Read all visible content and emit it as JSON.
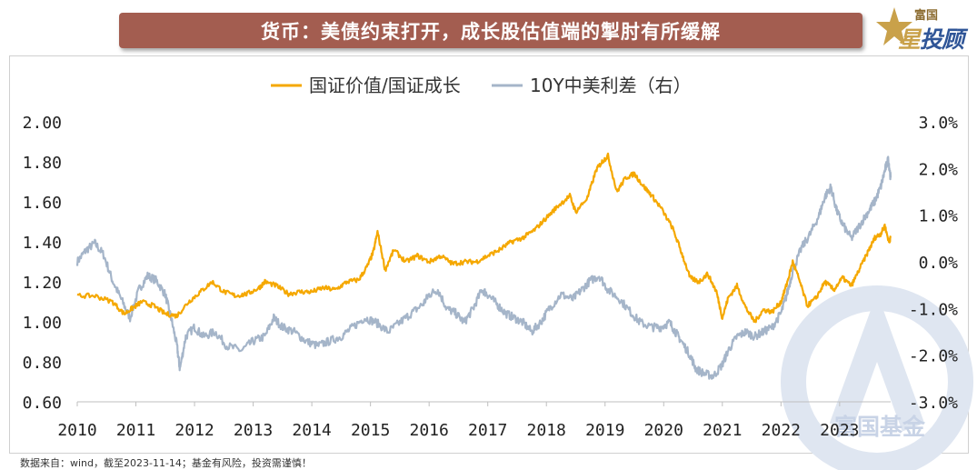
{
  "header": {
    "title": "货币：美债约束打开，成长股估值端的掣肘有所缓解"
  },
  "logo": {
    "top_text": "富国",
    "main_text_a": "星",
    "main_text_b": "投顾",
    "colors": {
      "gold": "#c9a14a",
      "blue": "#2f5597"
    }
  },
  "watermark": {
    "text": "富国基金",
    "color": "#c8d3e6"
  },
  "source": "数据来自：wind，截至2023-11-14；基金有风险，投资需谨慎！",
  "chart_data": {
    "type": "line",
    "legend_position": "top-center",
    "grid": false,
    "x": {
      "ticks": [
        "2010",
        "2011",
        "2012",
        "2013",
        "2014",
        "2015",
        "2016",
        "2017",
        "2018",
        "2019",
        "2020",
        "2021",
        "2022",
        "2023"
      ],
      "start": 2010.0,
      "end": 2023.87
    },
    "y_left": {
      "ticks": [
        "2.00",
        "1.80",
        "1.60",
        "1.40",
        "1.20",
        "1.00",
        "0.80",
        "0.60"
      ],
      "ylim": [
        0.6,
        2.0
      ]
    },
    "y_right": {
      "ticks": [
        "3.0%",
        "2.0%",
        "1.0%",
        "0.0%",
        "-1.0%",
        "-2.0%",
        "-3.0%"
      ],
      "ylim": [
        -3.0,
        3.0
      ]
    },
    "series": [
      {
        "name": "国证价值/国证成长",
        "axis": "left",
        "color": "#f5a800",
        "points": [
          [
            2010.0,
            1.13
          ],
          [
            2010.3,
            1.13
          ],
          [
            2010.6,
            1.1
          ],
          [
            2010.8,
            1.04
          ],
          [
            2010.95,
            1.07
          ],
          [
            2011.1,
            1.1
          ],
          [
            2011.3,
            1.08
          ],
          [
            2011.5,
            1.04
          ],
          [
            2011.7,
            1.03
          ],
          [
            2011.9,
            1.1
          ],
          [
            2012.1,
            1.15
          ],
          [
            2012.3,
            1.2
          ],
          [
            2012.5,
            1.15
          ],
          [
            2012.7,
            1.13
          ],
          [
            2012.9,
            1.14
          ],
          [
            2013.1,
            1.17
          ],
          [
            2013.2,
            1.2
          ],
          [
            2013.4,
            1.18
          ],
          [
            2013.6,
            1.14
          ],
          [
            2013.8,
            1.15
          ],
          [
            2014.0,
            1.15
          ],
          [
            2014.2,
            1.17
          ],
          [
            2014.4,
            1.16
          ],
          [
            2014.6,
            1.2
          ],
          [
            2014.8,
            1.21
          ],
          [
            2014.95,
            1.28
          ],
          [
            2015.05,
            1.35
          ],
          [
            2015.12,
            1.45
          ],
          [
            2015.25,
            1.26
          ],
          [
            2015.4,
            1.36
          ],
          [
            2015.6,
            1.3
          ],
          [
            2015.8,
            1.33
          ],
          [
            2016.0,
            1.3
          ],
          [
            2016.2,
            1.33
          ],
          [
            2016.4,
            1.29
          ],
          [
            2016.6,
            1.3
          ],
          [
            2016.8,
            1.3
          ],
          [
            2017.0,
            1.33
          ],
          [
            2017.2,
            1.36
          ],
          [
            2017.4,
            1.4
          ],
          [
            2017.6,
            1.42
          ],
          [
            2017.8,
            1.46
          ],
          [
            2018.0,
            1.52
          ],
          [
            2018.2,
            1.58
          ],
          [
            2018.4,
            1.63
          ],
          [
            2018.5,
            1.55
          ],
          [
            2018.7,
            1.62
          ],
          [
            2018.85,
            1.76
          ],
          [
            2018.95,
            1.8
          ],
          [
            2019.05,
            1.83
          ],
          [
            2019.2,
            1.65
          ],
          [
            2019.35,
            1.72
          ],
          [
            2019.5,
            1.74
          ],
          [
            2019.65,
            1.68
          ],
          [
            2019.8,
            1.63
          ],
          [
            2019.95,
            1.57
          ],
          [
            2020.15,
            1.47
          ],
          [
            2020.3,
            1.35
          ],
          [
            2020.45,
            1.22
          ],
          [
            2020.6,
            1.2
          ],
          [
            2020.75,
            1.24
          ],
          [
            2020.9,
            1.15
          ],
          [
            2021.0,
            1.02
          ],
          [
            2021.1,
            1.12
          ],
          [
            2021.25,
            1.18
          ],
          [
            2021.4,
            1.07
          ],
          [
            2021.55,
            1.0
          ],
          [
            2021.7,
            1.06
          ],
          [
            2021.85,
            1.05
          ],
          [
            2022.0,
            1.1
          ],
          [
            2022.1,
            1.19
          ],
          [
            2022.2,
            1.3
          ],
          [
            2022.3,
            1.22
          ],
          [
            2022.45,
            1.08
          ],
          [
            2022.6,
            1.12
          ],
          [
            2022.75,
            1.2
          ],
          [
            2022.9,
            1.16
          ],
          [
            2023.05,
            1.22
          ],
          [
            2023.2,
            1.18
          ],
          [
            2023.35,
            1.27
          ],
          [
            2023.5,
            1.36
          ],
          [
            2023.6,
            1.42
          ],
          [
            2023.7,
            1.44
          ],
          [
            2023.77,
            1.48
          ],
          [
            2023.84,
            1.4
          ],
          [
            2023.87,
            1.42
          ]
        ]
      },
      {
        "name": "10Y中美利差（右）",
        "axis": "right",
        "color": "#a5b5c9",
        "points": [
          [
            2010.0,
            0.0
          ],
          [
            2010.15,
            0.25
          ],
          [
            2010.3,
            0.4
          ],
          [
            2010.45,
            0.15
          ],
          [
            2010.6,
            -0.4
          ],
          [
            2010.75,
            -0.8
          ],
          [
            2010.9,
            -1.2
          ],
          [
            2011.05,
            -0.6
          ],
          [
            2011.2,
            -0.3
          ],
          [
            2011.35,
            -0.4
          ],
          [
            2011.5,
            -0.7
          ],
          [
            2011.6,
            -1.2
          ],
          [
            2011.7,
            -1.8
          ],
          [
            2011.75,
            -2.3
          ],
          [
            2011.85,
            -1.6
          ],
          [
            2012.0,
            -1.4
          ],
          [
            2012.15,
            -1.6
          ],
          [
            2012.35,
            -1.5
          ],
          [
            2012.55,
            -1.8
          ],
          [
            2012.8,
            -1.9
          ],
          [
            2013.0,
            -1.7
          ],
          [
            2013.2,
            -1.6
          ],
          [
            2013.35,
            -1.2
          ],
          [
            2013.5,
            -1.4
          ],
          [
            2013.7,
            -1.5
          ],
          [
            2013.9,
            -1.7
          ],
          [
            2014.1,
            -1.8
          ],
          [
            2014.3,
            -1.7
          ],
          [
            2014.5,
            -1.6
          ],
          [
            2014.7,
            -1.4
          ],
          [
            2014.9,
            -1.2
          ],
          [
            2015.1,
            -1.3
          ],
          [
            2015.3,
            -1.5
          ],
          [
            2015.5,
            -1.3
          ],
          [
            2015.7,
            -1.1
          ],
          [
            2015.9,
            -0.9
          ],
          [
            2016.0,
            -0.7
          ],
          [
            2016.15,
            -0.6
          ],
          [
            2016.3,
            -1.0
          ],
          [
            2016.45,
            -1.1
          ],
          [
            2016.6,
            -1.3
          ],
          [
            2016.75,
            -1.0
          ],
          [
            2016.9,
            -0.6
          ],
          [
            2017.0,
            -0.7
          ],
          [
            2017.15,
            -0.9
          ],
          [
            2017.3,
            -1.1
          ],
          [
            2017.45,
            -1.2
          ],
          [
            2017.6,
            -1.3
          ],
          [
            2017.75,
            -1.5
          ],
          [
            2017.9,
            -1.3
          ],
          [
            2018.05,
            -1.0
          ],
          [
            2018.25,
            -0.7
          ],
          [
            2018.45,
            -0.8
          ],
          [
            2018.6,
            -0.6
          ],
          [
            2018.75,
            -0.4
          ],
          [
            2018.9,
            -0.3
          ],
          [
            2019.05,
            -0.6
          ],
          [
            2019.25,
            -0.8
          ],
          [
            2019.45,
            -1.1
          ],
          [
            2019.6,
            -1.3
          ],
          [
            2019.8,
            -1.4
          ],
          [
            2019.95,
            -1.4
          ],
          [
            2020.1,
            -1.3
          ],
          [
            2020.2,
            -1.5
          ],
          [
            2020.3,
            -1.7
          ],
          [
            2020.45,
            -2.0
          ],
          [
            2020.55,
            -2.3
          ],
          [
            2020.7,
            -2.4
          ],
          [
            2020.85,
            -2.45
          ],
          [
            2021.0,
            -2.2
          ],
          [
            2021.1,
            -1.9
          ],
          [
            2021.25,
            -1.6
          ],
          [
            2021.4,
            -1.5
          ],
          [
            2021.55,
            -1.6
          ],
          [
            2021.7,
            -1.5
          ],
          [
            2021.85,
            -1.4
          ],
          [
            2022.0,
            -1.1
          ],
          [
            2022.1,
            -0.7
          ],
          [
            2022.2,
            -0.2
          ],
          [
            2022.35,
            0.3
          ],
          [
            2022.5,
            0.6
          ],
          [
            2022.65,
            1.0
          ],
          [
            2022.75,
            1.4
          ],
          [
            2022.85,
            1.6
          ],
          [
            2022.95,
            1.1
          ],
          [
            2023.05,
            0.8
          ],
          [
            2023.2,
            0.5
          ],
          [
            2023.35,
            0.8
          ],
          [
            2023.5,
            1.1
          ],
          [
            2023.6,
            1.3
          ],
          [
            2023.7,
            1.6
          ],
          [
            2023.78,
            2.0
          ],
          [
            2023.83,
            2.2
          ],
          [
            2023.87,
            1.8
          ]
        ]
      }
    ]
  }
}
